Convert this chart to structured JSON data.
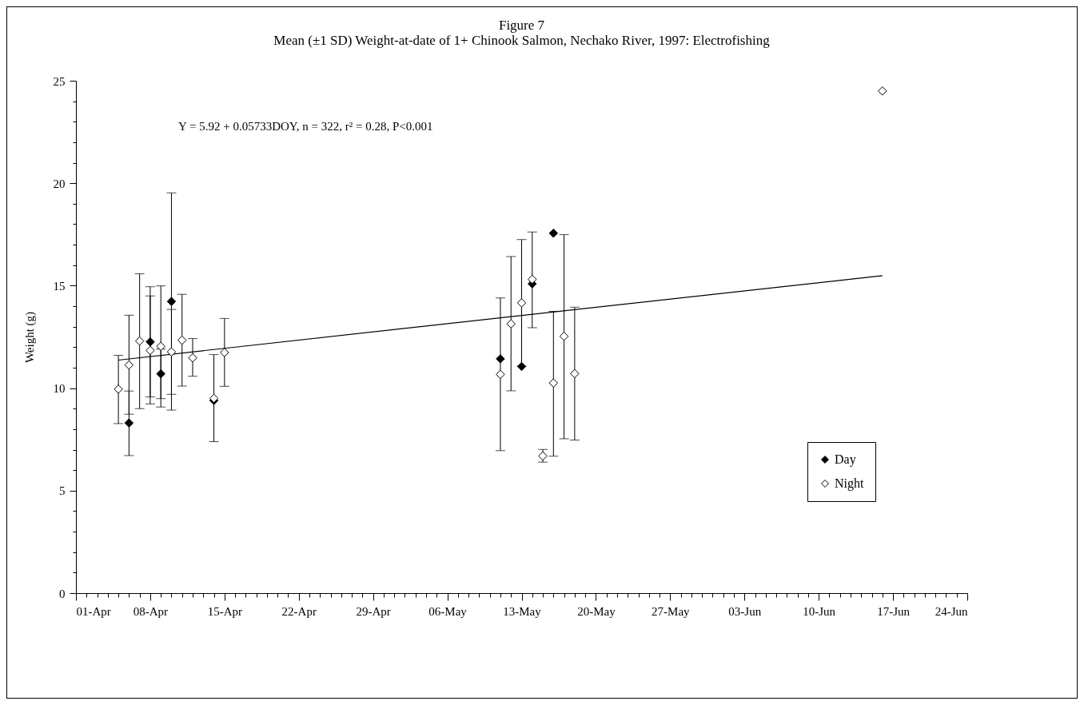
{
  "chart_data": {
    "type": "scatter",
    "title": "Figure 7",
    "subtitle": "Mean (±1 SD) Weight-at-date of 1+ Chinook Salmon, Nechako River, 1997: Electrofishing",
    "ylabel": "Weight (g)",
    "annotations": [
      "Y = 5.92 + 0.05733DOY, n = 322, r² = 0.28, P<0.001"
    ],
    "series": [
      {
        "name": "Day",
        "color": "#000000",
        "x": [
          "--04-06",
          "--04-08",
          "--04-09",
          "--04-10",
          "--04-14",
          "--05-11",
          "--05-13",
          "--05-14",
          "--05-16"
        ],
        "values": [
          8.3,
          12.26,
          10.7,
          14.23,
          9.4,
          11.43,
          11.06,
          15.09,
          17.56
        ],
        "errors": [
          [
            6.71,
            9.86
          ],
          [
            9.57,
            14.95
          ],
          [
            9.49,
            11.91
          ],
          [
            8.93,
            19.53
          ],
          null,
          null,
          null,
          null,
          null
        ]
      },
      {
        "name": "Night",
        "color": "#ffffff",
        "x": [
          "--04-05",
          "--04-06",
          "--04-07",
          "--04-08",
          "--04-09",
          "--04-10",
          "--04-11",
          "--04-12",
          "--04-14",
          "--04-15",
          "--05-11",
          "--05-12",
          "--05-13",
          "--05-14",
          "--05-15",
          "--05-16",
          "--05-17",
          "--05-18",
          "--06-16"
        ],
        "values": [
          9.95,
          11.13,
          12.3,
          11.84,
          12.04,
          11.77,
          12.34,
          11.48,
          9.5,
          11.74,
          10.67,
          13.14,
          14.16,
          15.31,
          6.69,
          10.25,
          12.53,
          10.71,
          24.5
        ],
        "errors": [
          [
            8.27,
            11.6
          ],
          [
            8.73,
            13.56
          ],
          [
            9.0,
            15.58
          ],
          [
            9.23,
            14.5
          ],
          [
            9.08,
            14.99
          ],
          [
            9.7,
            13.84
          ],
          [
            10.1,
            14.58
          ],
          [
            10.58,
            12.42
          ],
          [
            7.39,
            11.64
          ],
          [
            10.09,
            13.4
          ],
          [
            6.95,
            14.4
          ],
          [
            9.87,
            16.42
          ],
          [
            11.07,
            17.25
          ],
          [
            12.95,
            17.62
          ],
          [
            6.39,
            7.01
          ],
          [
            6.68,
            13.75
          ],
          [
            7.53,
            17.49
          ],
          [
            7.47,
            13.95
          ],
          null
        ]
      },
      {
        "type": "line",
        "color": "#000000",
        "marker": "none",
        "x": [
          "--04-05",
          "--06-16"
        ],
        "values": [
          11.37,
          15.49
        ]
      }
    ],
    "marker": "diamond",
    "legend": "bottom right",
    "grid": false,
    "xlim": [
      "--04-01",
      "--06-24"
    ],
    "xticks": [
      {
        "value": "--04-01",
        "label": "01-Apr"
      },
      {
        "value": "--04-02",
        "label": null
      },
      {
        "value": "--04-03",
        "label": null
      },
      {
        "value": "--04-04",
        "label": null
      },
      {
        "value": "--04-05",
        "label": null
      },
      {
        "value": "--04-06",
        "label": null
      },
      {
        "value": "--04-07",
        "label": null
      },
      {
        "value": "--04-08",
        "label": "08-Apr"
      },
      {
        "value": "--04-09",
        "label": null
      },
      {
        "value": "--04-10",
        "label": null
      },
      {
        "value": "--04-11",
        "label": null
      },
      {
        "value": "--04-12",
        "label": null
      },
      {
        "value": "--04-13",
        "label": null
      },
      {
        "value": "--04-14",
        "label": null
      },
      {
        "value": "--04-15",
        "label": "15-Apr"
      },
      {
        "value": "--04-16",
        "label": null
      },
      {
        "value": "--04-17",
        "label": null
      },
      {
        "value": "--04-18",
        "label": null
      },
      {
        "value": "--04-19",
        "label": null
      },
      {
        "value": "--04-20",
        "label": null
      },
      {
        "value": "--04-21",
        "label": null
      },
      {
        "value": "--04-22",
        "label": "22-Apr"
      },
      {
        "value": "--04-23",
        "label": null
      },
      {
        "value": "--04-24",
        "label": null
      },
      {
        "value": "--04-25",
        "label": null
      },
      {
        "value": "--04-26",
        "label": null
      },
      {
        "value": "--04-27",
        "label": null
      },
      {
        "value": "--04-28",
        "label": null
      },
      {
        "value": "--04-29",
        "label": "29-Apr"
      },
      {
        "value": "--04-30",
        "label": null
      },
      {
        "value": "--05-01",
        "label": null
      },
      {
        "value": "--05-02",
        "label": null
      },
      {
        "value": "--05-03",
        "label": null
      },
      {
        "value": "--05-04",
        "label": null
      },
      {
        "value": "--05-05",
        "label": null
      },
      {
        "value": "--05-06",
        "label": "06-May"
      },
      {
        "value": "--05-07",
        "label": null
      },
      {
        "value": "--05-08",
        "label": null
      },
      {
        "value": "--05-09",
        "label": null
      },
      {
        "value": "--05-10",
        "label": null
      },
      {
        "value": "--05-11",
        "label": null
      },
      {
        "value": "--05-12",
        "label": null
      },
      {
        "value": "--05-13",
        "label": "13-May"
      },
      {
        "value": "--05-14",
        "label": null
      },
      {
        "value": "--05-15",
        "label": null
      },
      {
        "value": "--05-16",
        "label": null
      },
      {
        "value": "--05-17",
        "label": null
      },
      {
        "value": "--05-18",
        "label": null
      },
      {
        "value": "--05-19",
        "label": null
      },
      {
        "value": "--05-20",
        "label": "20-May"
      },
      {
        "value": "--05-21",
        "label": null
      },
      {
        "value": "--05-22",
        "label": null
      },
      {
        "value": "--05-23",
        "label": null
      },
      {
        "value": "--05-24",
        "label": null
      },
      {
        "value": "--05-25",
        "label": null
      },
      {
        "value": "--05-26",
        "label": null
      },
      {
        "value": "--05-27",
        "label": "27-May"
      },
      {
        "value": "--05-28",
        "label": null
      },
      {
        "value": "--05-29",
        "label": null
      },
      {
        "value": "--05-30",
        "label": null
      },
      {
        "value": "--05-31",
        "label": null
      },
      {
        "value": "--06-01",
        "label": null
      },
      {
        "value": "--06-02",
        "label": null
      },
      {
        "value": "--06-03",
        "label": "03-Jun"
      },
      {
        "value": "--06-04",
        "label": null
      },
      {
        "value": "--06-05",
        "label": null
      },
      {
        "value": "--06-06",
        "label": null
      },
      {
        "value": "--06-07",
        "label": null
      },
      {
        "value": "--06-08",
        "label": null
      },
      {
        "value": "--06-09",
        "label": null
      },
      {
        "value": "--06-10",
        "label": "10-Jun"
      },
      {
        "value": "--06-11",
        "label": null
      },
      {
        "value": "--06-12",
        "label": null
      },
      {
        "value": "--06-13",
        "label": null
      },
      {
        "value": "--06-14",
        "label": null
      },
      {
        "value": "--06-15",
        "label": null
      },
      {
        "value": "--06-16",
        "label": null
      },
      {
        "value": "--06-17",
        "label": "17-Jun"
      },
      {
        "value": "--06-18",
        "label": null
      },
      {
        "value": "--06-19",
        "label": null
      },
      {
        "value": "--06-20",
        "label": null
      },
      {
        "value": "--06-21",
        "label": null
      },
      {
        "value": "--06-22",
        "label": null
      },
      {
        "value": "--06-23",
        "label": null
      },
      {
        "value": "--06-24",
        "label": "24-Jun"
      }
    ],
    "ylim": [
      0,
      25
    ],
    "yticks": [
      0,
      {
        "value": 1,
        "label": null
      },
      {
        "value": 2,
        "label": null
      },
      {
        "value": 3,
        "label": null
      },
      {
        "value": 4,
        "label": null
      },
      5,
      {
        "value": 6,
        "label": null
      },
      {
        "value": 7,
        "label": null
      },
      {
        "value": 8,
        "label": null
      },
      {
        "value": 9,
        "label": null
      },
      10,
      {
        "value": 11,
        "label": null
      },
      {
        "value": 12,
        "label": null
      },
      {
        "value": 13,
        "label": null
      },
      {
        "value": 14,
        "label": null
      },
      15,
      {
        "value": 16,
        "label": null
      },
      {
        "value": 17,
        "label": null
      },
      {
        "value": 18,
        "label": null
      },
      {
        "value": 19,
        "label": null
      },
      20,
      {
        "value": 21,
        "label": null
      },
      {
        "value": 22,
        "label": null
      },
      {
        "value": 23,
        "label": null
      },
      {
        "value": 24,
        "label": null
      },
      25
    ]
  }
}
